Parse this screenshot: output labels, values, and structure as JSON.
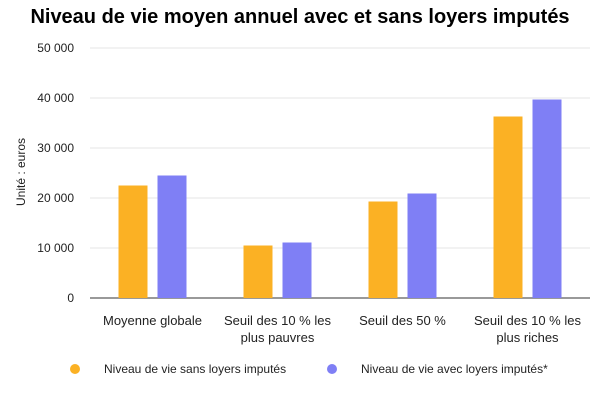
{
  "chart_data": {
    "type": "bar",
    "title": "Niveau de vie moyen annuel avec et sans loyers imputés",
    "xlabel": "",
    "ylabel": "Unité : euros",
    "ylim": [
      0,
      50000
    ],
    "yticks": [
      0,
      10000,
      20000,
      30000,
      40000,
      50000
    ],
    "ytick_labels": [
      "0",
      "10 000",
      "20 000",
      "30 000",
      "40 000",
      "50 000"
    ],
    "grid": true,
    "legend_position": "bottom",
    "categories": [
      [
        "Moyenne globale"
      ],
      [
        "Seuil des 10 % les",
        "plus pauvres"
      ],
      [
        "Seuil des 50 %"
      ],
      [
        "Seuil des 10 % les",
        "plus riches"
      ]
    ],
    "series": [
      {
        "name": "Niveau de vie sans loyers imputés",
        "color": "#fbb124",
        "values": [
          22500,
          10500,
          19300,
          36300
        ]
      },
      {
        "name": "Niveau de vie avec loyers imputés*",
        "color": "#7f7ff5",
        "values": [
          24500,
          11100,
          20900,
          39700
        ]
      }
    ]
  }
}
